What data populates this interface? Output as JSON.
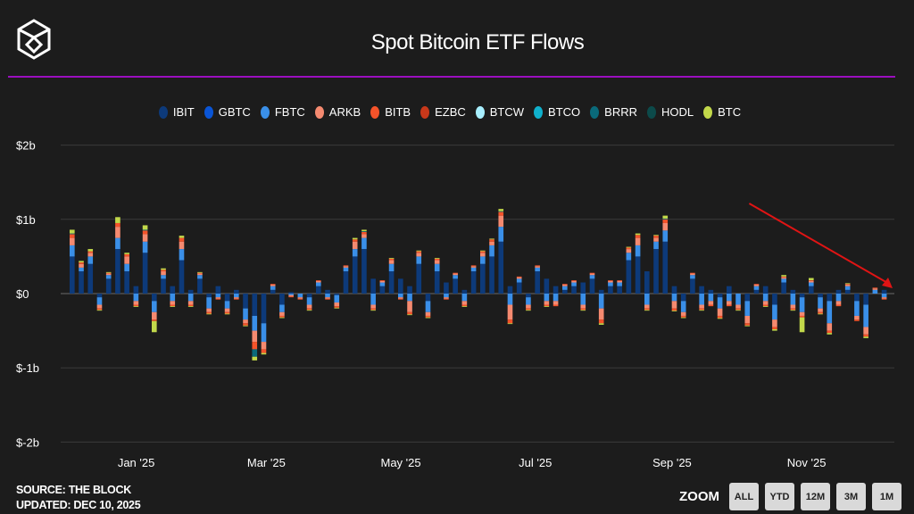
{
  "header": {
    "title": "Spot Bitcoin ETF Flows"
  },
  "footer": {
    "source": "SOURCE: THE BLOCK",
    "updated": "UPDATED: DEC 10, 2025"
  },
  "zoom": {
    "label": "ZOOM",
    "buttons": [
      "ALL",
      "YTD",
      "12M",
      "3M",
      "1M"
    ]
  },
  "chart_data": {
    "type": "bar",
    "stacked": true,
    "title": "Spot Bitcoin ETF Flows",
    "ylabel": "",
    "xlabel": "",
    "ylim": [
      -2,
      2
    ],
    "yticks": [
      "$2b",
      "$1b",
      "$0",
      "$-1b",
      "$-2b"
    ],
    "ytick_values": [
      2,
      1,
      0,
      -1,
      -2
    ],
    "xticks": [
      "Jan '25",
      "Mar '25",
      "May '25",
      "Jul '25",
      "Sep '25",
      "Nov '25"
    ],
    "units": "$b",
    "x_start": "2024-12-01",
    "x_end": "2025-12-10",
    "legend": [
      {
        "name": "IBIT",
        "color": "#0d3a7a"
      },
      {
        "name": "GBTC",
        "color": "#0a55d6"
      },
      {
        "name": "FBTC",
        "color": "#3a8fe8"
      },
      {
        "name": "ARKB",
        "color": "#f58a70"
      },
      {
        "name": "BITB",
        "color": "#f5532a"
      },
      {
        "name": "EZBC",
        "color": "#c8381a"
      },
      {
        "name": "BTCW",
        "color": "#a8efff"
      },
      {
        "name": "BTCO",
        "color": "#10b0cc"
      },
      {
        "name": "BRRR",
        "color": "#0a6a7a"
      },
      {
        "name": "HODL",
        "color": "#0c4a4a"
      },
      {
        "name": "BTC",
        "color": "#c2d84a"
      }
    ],
    "series": [
      {
        "name": "IBIT",
        "values": [
          0.5,
          0.3,
          0.4,
          -0.05,
          0.2,
          0.6,
          0.3,
          0.1,
          0.55,
          -0.1,
          0.2,
          0.1,
          0.45,
          0.05,
          0.2,
          -0.05,
          0.1,
          -0.1,
          0.05,
          -0.2,
          -0.3,
          -0.4,
          0.05,
          -0.15,
          0.02,
          0.0,
          -0.05,
          0.1,
          0.05,
          -0.02,
          0.3,
          0.5,
          0.6,
          0.2,
          0.1,
          0.3,
          0.2,
          0.1,
          0.4,
          -0.1,
          0.3,
          0.15,
          0.2,
          0.05,
          0.3,
          0.4,
          0.5,
          0.7,
          0.1,
          0.15,
          -0.05,
          0.3,
          0.2,
          0.1,
          0.05,
          0.1,
          0.15,
          0.2,
          0.05,
          0.1,
          0.1,
          0.45,
          0.5,
          0.3,
          0.6,
          0.7,
          0.1,
          -0.1,
          0.2,
          0.1,
          0.05,
          -0.05,
          0.1,
          0.0,
          -0.1,
          0.05,
          0.1,
          -0.15,
          0.15,
          0.05,
          -0.05,
          0.1,
          -0.05,
          -0.1,
          0.05,
          0.05,
          -0.1,
          -0.15,
          0.0,
          0.05
        ]
      },
      {
        "name": "FBTC",
        "values": [
          0.15,
          0.05,
          0.1,
          -0.1,
          0.05,
          0.15,
          0.1,
          -0.1,
          0.15,
          -0.15,
          0.05,
          -0.1,
          0.15,
          -0.1,
          0.05,
          -0.15,
          -0.05,
          -0.1,
          -0.05,
          -0.15,
          -0.2,
          -0.25,
          0.05,
          -0.1,
          -0.02,
          -0.05,
          -0.1,
          0.05,
          -0.05,
          -0.1,
          0.05,
          0.1,
          0.15,
          -0.15,
          0.05,
          0.1,
          -0.05,
          -0.1,
          0.1,
          -0.15,
          0.1,
          -0.05,
          0.05,
          -0.1,
          0.05,
          0.1,
          0.15,
          0.2,
          -0.15,
          0.05,
          -0.1,
          0.05,
          -0.1,
          -0.1,
          0.05,
          0.05,
          -0.15,
          0.05,
          -0.2,
          0.05,
          0.05,
          0.1,
          0.15,
          -0.15,
          0.1,
          0.15,
          -0.1,
          -0.15,
          0.05,
          -0.15,
          -0.1,
          -0.15,
          -0.1,
          -0.15,
          -0.2,
          0.05,
          -0.1,
          -0.2,
          0.05,
          -0.15,
          -0.2,
          0.05,
          -0.15,
          -0.3,
          -0.1,
          0.05,
          -0.2,
          -0.3,
          0.05,
          -0.05
        ]
      },
      {
        "name": "ARKB",
        "values": [
          0.1,
          0.05,
          0.05,
          -0.05,
          0.02,
          0.15,
          0.1,
          -0.05,
          0.1,
          -0.1,
          0.05,
          -0.05,
          0.1,
          -0.05,
          0.02,
          -0.05,
          -0.02,
          -0.05,
          -0.02,
          -0.05,
          -0.15,
          -0.1,
          0.02,
          -0.05,
          -0.02,
          -0.02,
          -0.05,
          0.02,
          -0.02,
          -0.05,
          0.02,
          0.1,
          0.05,
          -0.05,
          0.02,
          0.05,
          -0.02,
          -0.15,
          0.05,
          -0.05,
          0.05,
          -0.02,
          0.02,
          -0.05,
          0.02,
          0.05,
          0.05,
          0.15,
          -0.2,
          0.02,
          -0.05,
          0.02,
          -0.05,
          -0.05,
          0.02,
          0.02,
          -0.05,
          0.02,
          -0.15,
          0.02,
          0.02,
          0.05,
          0.1,
          -0.05,
          0.05,
          0.1,
          -0.1,
          -0.05,
          0.02,
          -0.05,
          -0.05,
          -0.1,
          -0.05,
          -0.05,
          -0.1,
          0.02,
          -0.05,
          -0.1,
          0.02,
          -0.05,
          -0.05,
          0.02,
          -0.05,
          -0.1,
          -0.05,
          0.02,
          -0.05,
          -0.1,
          0.02,
          -0.02
        ]
      },
      {
        "name": "BITB",
        "values": [
          0.05,
          0.02,
          0.02,
          -0.02,
          0.01,
          0.05,
          0.03,
          -0.02,
          0.05,
          -0.02,
          0.02,
          -0.02,
          0.05,
          -0.02,
          0.01,
          -0.02,
          -0.01,
          -0.02,
          -0.01,
          -0.03,
          -0.1,
          -0.05,
          0.01,
          -0.02,
          -0.01,
          -0.01,
          -0.02,
          0.01,
          -0.01,
          -0.02,
          0.01,
          0.03,
          0.03,
          -0.02,
          0.01,
          0.02,
          -0.01,
          -0.03,
          0.02,
          -0.02,
          0.02,
          -0.01,
          0.01,
          -0.02,
          0.01,
          0.02,
          0.03,
          0.05,
          -0.05,
          0.01,
          -0.02,
          0.01,
          -0.02,
          -0.02,
          0.01,
          0.01,
          -0.02,
          0.01,
          -0.05,
          0.01,
          0.01,
          0.02,
          0.04,
          -0.02,
          0.03,
          0.05,
          -0.03,
          -0.02,
          0.01,
          -0.02,
          -0.02,
          -0.03,
          -0.02,
          -0.02,
          -0.03,
          0.01,
          -0.02,
          -0.03,
          0.01,
          -0.02,
          -0.02,
          0.01,
          -0.02,
          -0.03,
          -0.02,
          0.01,
          -0.02,
          -0.03,
          0.01,
          -0.01
        ]
      },
      {
        "name": "BRRR",
        "values": [
          0.01,
          0,
          0,
          0,
          0,
          0,
          0,
          0,
          0.01,
          0,
          0,
          0,
          0,
          0,
          0,
          0,
          0,
          0,
          0,
          0,
          -0.1,
          0,
          0,
          0,
          0,
          0,
          0,
          0,
          0,
          0,
          0,
          0,
          0.01,
          0,
          0,
          0,
          0,
          0,
          0,
          0,
          0,
          0,
          0,
          0,
          0,
          0,
          0,
          0.01,
          0,
          0,
          0,
          0,
          0,
          0,
          0,
          0,
          0,
          0,
          0,
          0,
          0,
          0,
          0,
          0,
          0,
          0.01,
          0,
          0,
          0,
          0,
          0,
          0,
          0,
          0,
          0,
          0,
          0,
          0,
          0,
          0,
          0,
          0,
          0,
          0,
          0,
          0,
          0,
          0,
          0,
          0
        ]
      },
      {
        "name": "BTC",
        "values": [
          0.05,
          0.02,
          0.03,
          -0.01,
          0.01,
          0.08,
          0.02,
          -0.01,
          0.06,
          -0.15,
          0.02,
          -0.01,
          0.03,
          -0.01,
          0.01,
          -0.01,
          0,
          -0.01,
          0,
          -0.01,
          -0.05,
          -0.02,
          0,
          -0.01,
          0,
          0,
          -0.01,
          0,
          0,
          -0.01,
          0,
          0.02,
          0.02,
          -0.01,
          0,
          0.01,
          0,
          -0.01,
          0.01,
          -0.01,
          0.01,
          0,
          0,
          -0.01,
          0,
          0.01,
          0.01,
          0.03,
          -0.01,
          0,
          -0.01,
          0,
          -0.01,
          0,
          0,
          0,
          -0.01,
          0,
          -0.02,
          0,
          0,
          0.01,
          0.02,
          -0.01,
          0.01,
          0.04,
          -0.01,
          -0.01,
          0,
          -0.01,
          0,
          -0.01,
          0,
          -0.01,
          -0.01,
          0,
          -0.01,
          -0.02,
          0.02,
          -0.01,
          -0.2,
          0.03,
          -0.01,
          -0.02,
          0,
          0.01,
          0,
          -0.02,
          0,
          0
        ]
      }
    ],
    "annotations": [
      {
        "type": "trend-arrow",
        "color": "#e01414",
        "from": "2025-10-06",
        "to": "2025-12-10",
        "direction": "down"
      }
    ]
  }
}
